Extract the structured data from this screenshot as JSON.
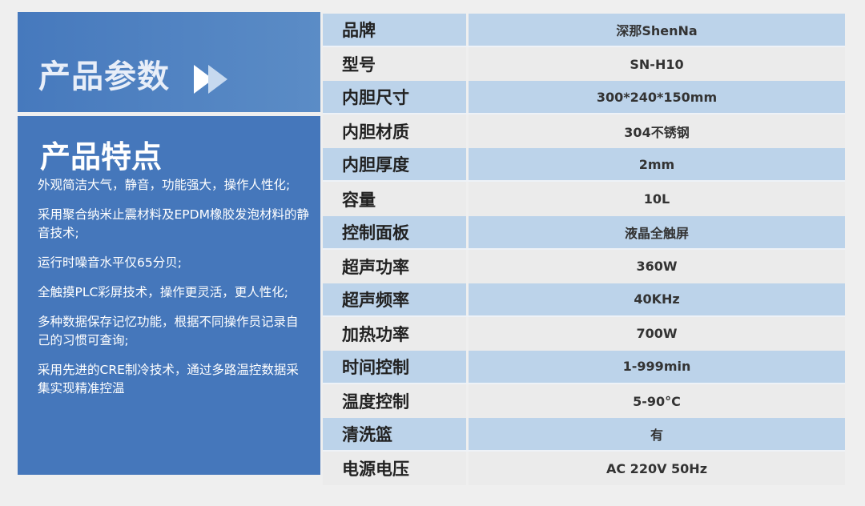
{
  "params_title": "产品参数",
  "features_title": "产品特点",
  "features": [
    "外观简洁大气，静音，功能强大，操作人性化;",
    "采用聚合纳米止震材料及EPDM橡胶发泡材料的静音技术;",
    "运行时噪音水平仅65分贝;",
    "全触摸PLC彩屏技术，操作更灵活，更人性化;",
    "多种数据保存记忆功能，根据不同操作员记录自己的习惯可查询;",
    "采用先进的CRE制冷技术，通过多路温控数据采集实现精准控温"
  ],
  "specs": [
    {
      "k": "品牌",
      "v": "深那ShenNa"
    },
    {
      "k": "型号",
      "v": "SN-H10"
    },
    {
      "k": "内胆尺寸",
      "v": "300*240*150mm"
    },
    {
      "k": "内胆材质",
      "v": "304不锈钢"
    },
    {
      "k": "内胆厚度",
      "v": "2mm"
    },
    {
      "k": "容量",
      "v": "10L"
    },
    {
      "k": "控制面板",
      "v": "液晶全触屏"
    },
    {
      "k": "超声功率",
      "v": "360W"
    },
    {
      "k": "超声频率",
      "v": "40KHz"
    },
    {
      "k": "加热功率",
      "v": "700W"
    },
    {
      "k": "时间控制",
      "v": "1-999min"
    },
    {
      "k": "温度控制",
      "v": "5-90°C"
    },
    {
      "k": "清洗篮",
      "v": "有"
    },
    {
      "k": "电源电压",
      "v": "AC 220V  50Hz"
    }
  ],
  "colors": {
    "panel": "#4577bb",
    "row_blue": "#bcd3ea",
    "row_gray": "#ebebeb"
  }
}
